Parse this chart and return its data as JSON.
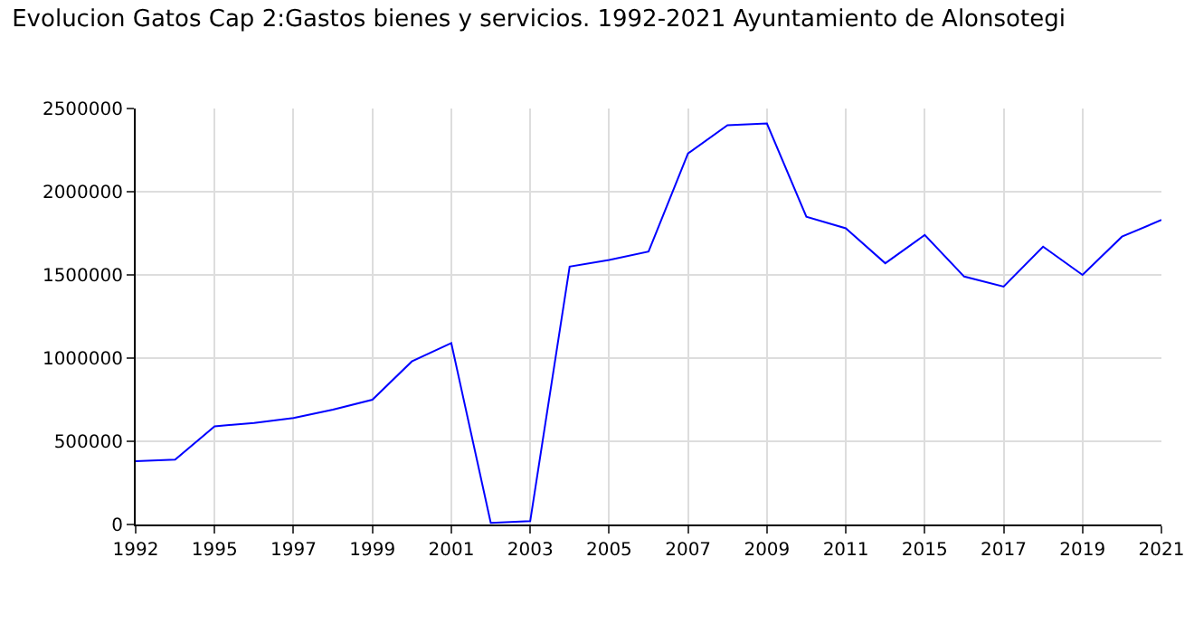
{
  "chart_data": {
    "type": "line",
    "title": "Evolucion Gatos Cap 2:Gastos bienes y servicios. 1992-2021 Ayuntamiento de Alonsotegi",
    "categories": [
      "1992",
      null,
      "1995",
      null,
      "1997",
      null,
      "1999",
      null,
      "2001",
      null,
      "2003",
      null,
      "2005",
      null,
      "2007",
      null,
      "2009",
      null,
      "2011",
      null,
      "2015",
      null,
      "2017",
      null,
      "2019",
      null,
      "2021"
    ],
    "series": [
      {
        "color": "#0000ff",
        "values": [
          380000,
          390000,
          590000,
          610000,
          640000,
          690000,
          750000,
          980000,
          1090000,
          10000,
          20000,
          1550000,
          1590000,
          1640000,
          2230000,
          2400000,
          2410000,
          1850000,
          1780000,
          1570000,
          1740000,
          1490000,
          1430000,
          1670000,
          1500000,
          1730000,
          1830000
        ]
      }
    ],
    "ylim": [
      0,
      2500000
    ],
    "yticks": [
      0,
      500000,
      1000000,
      1500000,
      2000000,
      2500000
    ],
    "grid": true,
    "marker": "none",
    "line_style": "solid"
  }
}
